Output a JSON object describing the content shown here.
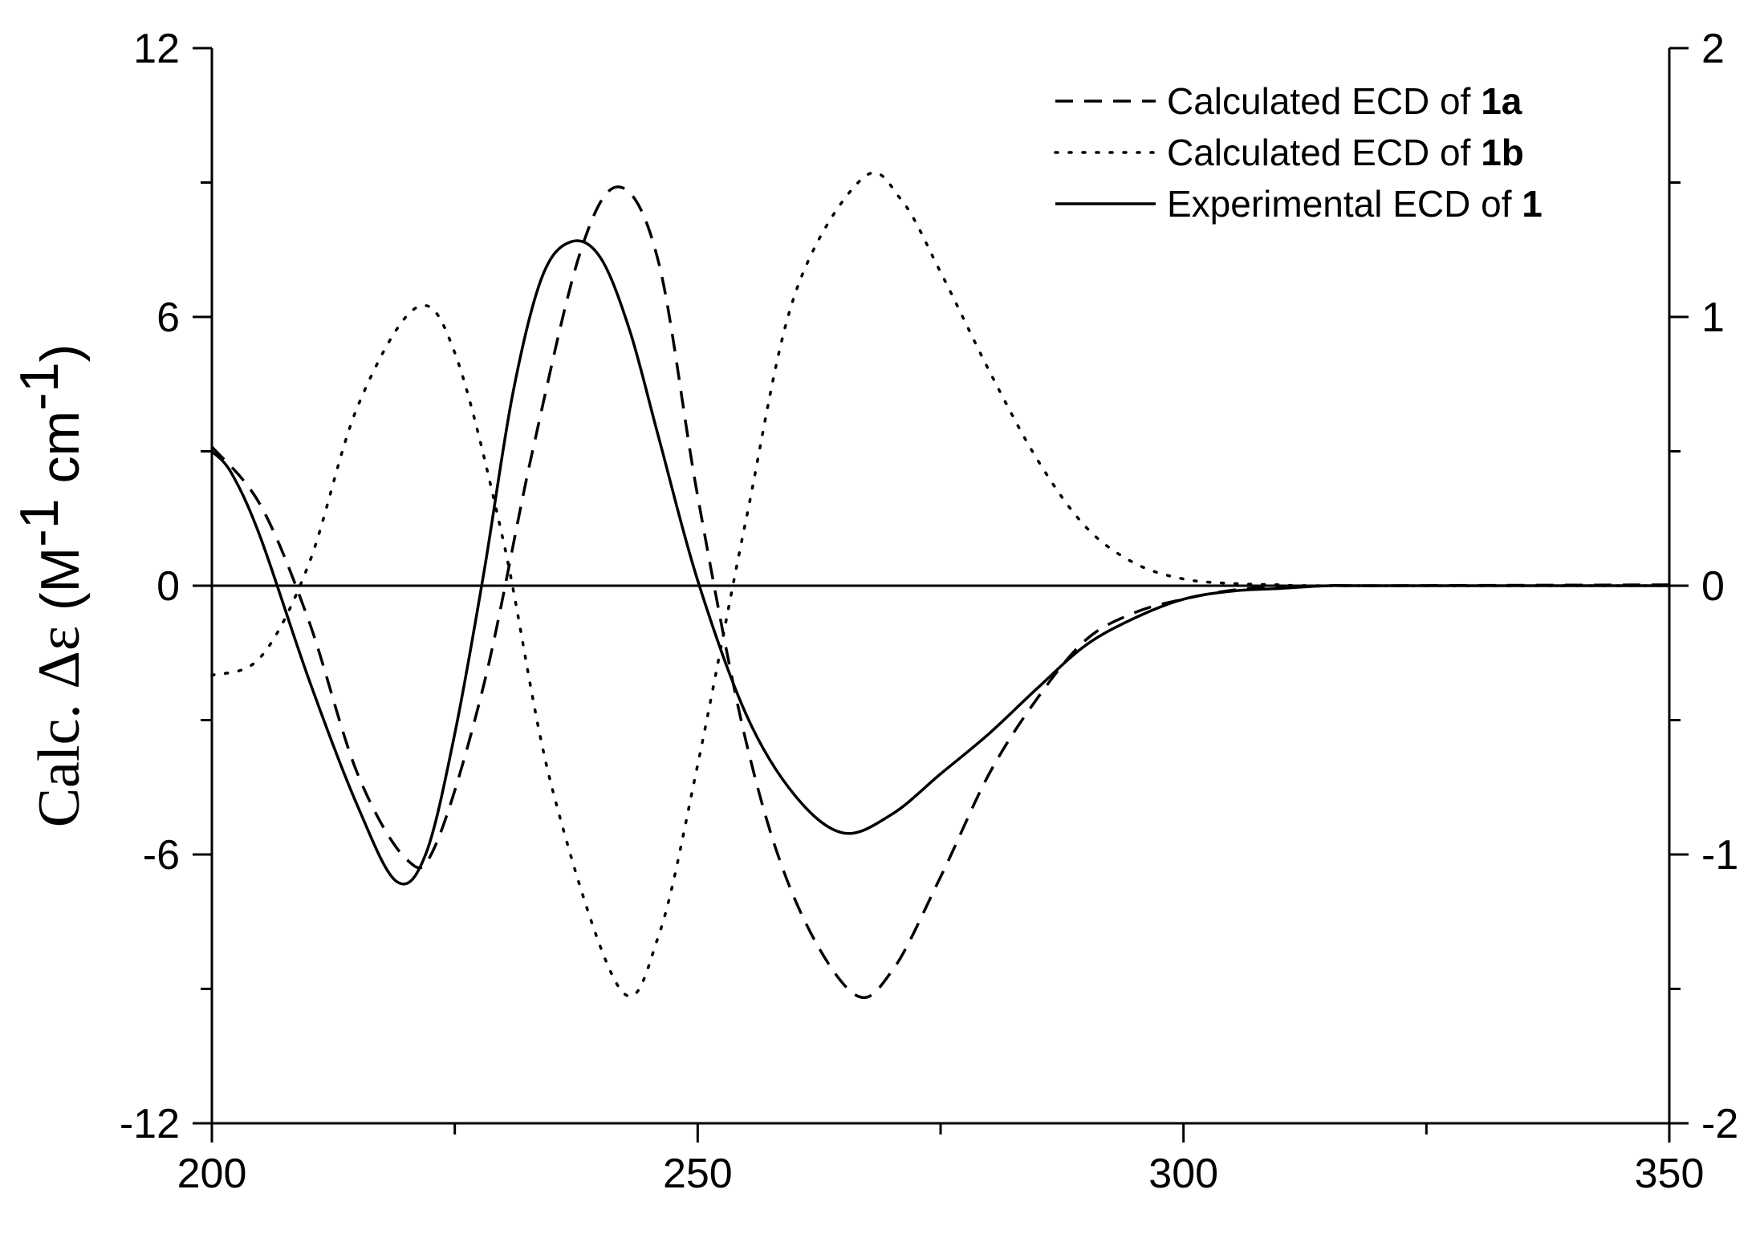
{
  "chart_data": {
    "type": "line",
    "title": "",
    "xlabel": "",
    "ylabel": {
      "main": "Calc. Δε",
      "unit_open": " (M",
      "sup1": "-1",
      "unit_mid": " cm",
      "sup2": "-1",
      "unit_close": ")"
    },
    "xlim": [
      200,
      350
    ],
    "ylim_left": [
      -12,
      12
    ],
    "ylim_right": [
      -2,
      2
    ],
    "x_ticks": [
      200,
      250,
      300,
      350
    ],
    "x_tick_labels": [
      "200",
      "250",
      "300",
      "350"
    ],
    "y_left_ticks": [
      -12,
      -6,
      0,
      6,
      12
    ],
    "y_left_tick_labels": [
      "-12",
      "-6",
      "0",
      "6",
      "12"
    ],
    "y_right_ticks": [
      -2,
      -1,
      0,
      1,
      2
    ],
    "y_right_tick_labels": [
      "-2",
      "-1",
      "0",
      "1",
      "2"
    ],
    "zero_line": true,
    "legend_position": "top-right",
    "series": [
      {
        "name": "Calculated ECD of 1a",
        "label_prefix": "Calculated ECD of ",
        "label_bold": "1a",
        "style": "dashed",
        "axis": "left",
        "x": [
          200,
          205,
          210,
          215,
          220,
          223,
          228,
          233,
          238,
          242,
          246,
          250,
          255,
          260,
          266,
          270,
          275,
          280,
          285,
          290,
          295,
          300,
          305,
          310,
          315,
          320,
          350
        ],
        "y": [
          3.1,
          1.8,
          -0.8,
          -4.2,
          -6.1,
          -5.8,
          -2.2,
          3.0,
          7.5,
          8.9,
          7.2,
          2.0,
          -3.5,
          -7.0,
          -9.1,
          -8.6,
          -6.5,
          -4.2,
          -2.5,
          -1.2,
          -0.6,
          -0.3,
          -0.1,
          -0.03,
          0.0,
          0.0,
          0.02
        ]
      },
      {
        "name": "Calculated ECD of 1b",
        "label_prefix": "Calculated ECD of ",
        "label_bold": "1b",
        "style": "dotted",
        "axis": "left",
        "x": [
          200,
          205,
          210,
          215,
          221,
          225,
          230,
          235,
          242,
          246,
          250,
          255,
          260,
          267,
          271,
          275,
          280,
          285,
          290,
          295,
          300,
          305,
          310,
          315,
          350
        ],
        "y": [
          -2.0,
          -1.6,
          0.5,
          4.0,
          6.2,
          5.2,
          1.0,
          -4.5,
          -9.0,
          -7.8,
          -4.0,
          1.5,
          6.5,
          9.1,
          8.6,
          7.0,
          4.8,
          2.8,
          1.3,
          0.5,
          0.15,
          0.05,
          0.02,
          0.0,
          0.0
        ]
      },
      {
        "name": "Experimental ECD of 1",
        "label_prefix": "Experimental ECD of ",
        "label_bold": "1",
        "style": "solid",
        "axis": "right",
        "x": [
          200,
          202,
          205,
          210,
          215,
          219,
          222,
          225,
          228,
          231,
          234,
          237,
          240,
          243,
          246,
          250,
          255,
          260,
          265,
          270,
          275,
          280,
          285,
          290,
          295,
          300,
          305,
          310,
          315,
          320,
          350
        ],
        "y_right_units": [
          0.5,
          0.42,
          0.18,
          -0.35,
          -0.82,
          -1.1,
          -1.0,
          -0.55,
          0.05,
          0.72,
          1.15,
          1.28,
          1.22,
          0.95,
          0.55,
          0.02,
          -0.48,
          -0.78,
          -0.92,
          -0.85,
          -0.7,
          -0.55,
          -0.38,
          -0.22,
          -0.12,
          -0.05,
          -0.02,
          -0.01,
          0.0,
          0.0,
          0.0
        ]
      }
    ]
  }
}
